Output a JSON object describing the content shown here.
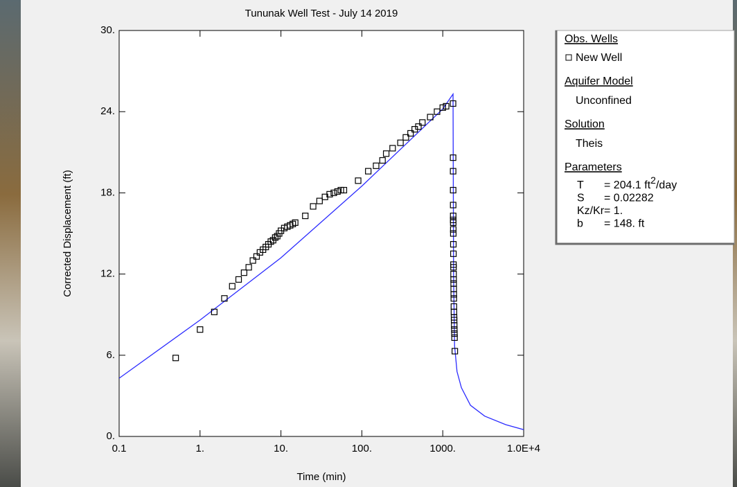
{
  "chart_data": {
    "type": "scatter",
    "title": "Tununak Well Test  - July 14 2019",
    "x_label": "Time (min)",
    "y_label": "Corrected Displacement (ft)",
    "log_x": true,
    "xlim": [
      0.1,
      10000
    ],
    "xticks": [
      0.1,
      {
        "value": 1,
        "label": "1."
      },
      {
        "value": 10,
        "label": "10."
      },
      {
        "value": 100,
        "label": "100."
      },
      {
        "value": 1000,
        "label": "1000."
      },
      {
        "value": 10000,
        "label": "1.0E+4"
      }
    ],
    "ylim": [
      0,
      30
    ],
    "yticks": [
      {
        "value": 0,
        "label": "0."
      },
      {
        "value": 6,
        "label": "6."
      },
      {
        "value": 12,
        "label": "12."
      },
      {
        "value": 18,
        "label": "18."
      },
      {
        "value": 24,
        "label": "24."
      },
      {
        "value": 30,
        "label": "30."
      }
    ],
    "series": [
      {
        "name": "New Well",
        "color": "#000000",
        "marker": "square",
        "x": [
          0.5,
          1,
          1.5,
          2,
          2.5,
          3,
          3.5,
          4,
          4.5,
          5,
          5.5,
          6,
          6.5,
          7,
          7.5,
          8,
          8.5,
          9,
          9.5,
          10,
          11,
          12,
          13,
          14,
          15,
          20,
          25,
          30,
          35,
          40,
          45,
          50,
          55,
          60,
          90,
          120,
          150,
          180,
          200,
          240,
          300,
          350,
          400,
          450,
          500,
          560,
          700,
          850,
          1000,
          1100,
          1340,
          1342,
          1343,
          1344,
          1345,
          1346,
          1347,
          1348,
          1349,
          1350,
          1352,
          1354,
          1356,
          1358,
          1360,
          1362,
          1364,
          1366,
          1368,
          1370,
          1373,
          1376,
          1379,
          1382,
          1386,
          1390,
          1394,
          1398,
          1410
        ],
        "values": [
          5.8,
          7.9,
          9.2,
          10.2,
          11.1,
          11.6,
          12.1,
          12.5,
          13.0,
          13.3,
          13.6,
          13.8,
          14.0,
          14.2,
          14.4,
          14.5,
          14.7,
          14.8,
          15.0,
          15.2,
          15.4,
          15.5,
          15.6,
          15.7,
          15.8,
          16.3,
          17.0,
          17.4,
          17.7,
          17.9,
          18.0,
          18.1,
          18.2,
          18.2,
          18.9,
          19.6,
          20.0,
          20.4,
          20.9,
          21.3,
          21.7,
          22.1,
          22.4,
          22.7,
          22.9,
          23.2,
          23.6,
          24.0,
          24.3,
          24.4,
          24.6,
          20.6,
          19.6,
          18.2,
          17.1,
          16.3,
          16.0,
          15.8,
          15.3,
          15.0,
          14.2,
          13.5,
          12.7,
          12.5,
          12.0,
          11.6,
          11.3,
          10.9,
          10.5,
          10.2,
          9.6,
          9.2,
          8.8,
          8.6,
          8.2,
          7.9,
          7.6,
          7.3,
          6.3
        ]
      }
    ],
    "solution_curve": {
      "color": "#2b2bff",
      "x": [
        0.1,
        1,
        10,
        100,
        1000,
        1340,
        1360,
        1400,
        1500,
        1700,
        2200,
        3300,
        6000,
        10000
      ],
      "values": [
        4.3,
        8.6,
        13.2,
        18.5,
        24.2,
        25.3,
        12,
        6.7,
        4.8,
        3.6,
        2.3,
        1.5,
        0.87,
        0.5
      ]
    },
    "legend": {
      "obs_heading": "Obs. Wells",
      "model_heading": "Aquifer Model",
      "model": "Unconfined",
      "solution_heading": "Solution",
      "solution": "Theis",
      "parameters_heading": "Parameters",
      "parameters": [
        {
          "name": "T",
          "value": "= 204.1 ft",
          "sup": "2",
          "unit": "/day"
        },
        {
          "name": "S",
          "value": "= 0.02282"
        },
        {
          "name": "Kz/Kr",
          "value": "= 1."
        },
        {
          "name": "b",
          "value": "= 148. ft"
        }
      ]
    }
  }
}
